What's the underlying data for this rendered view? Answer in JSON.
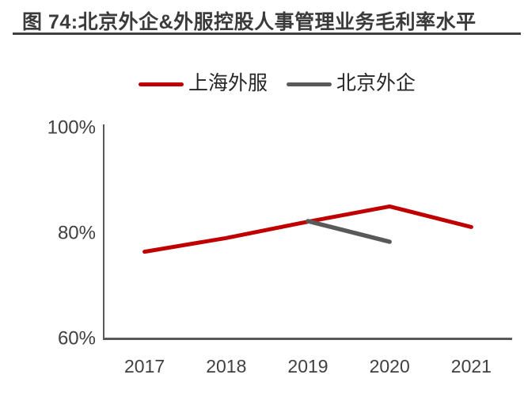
{
  "figure": {
    "title": "图 74:北京外企&外服控股人事管理业务毛利率水平"
  },
  "chart_data": {
    "type": "line",
    "title": "图 74:北京外企&外服控股人事管理业务毛利率水平",
    "categories": [
      "2017",
      "2018",
      "2019",
      "2020",
      "2021"
    ],
    "series": [
      {
        "name": "上海外服",
        "color": "#C00000",
        "values": [
          76.6,
          79.2,
          82.3,
          85.2,
          81.3
        ]
      },
      {
        "name": "北京外企",
        "color": "#595959",
        "values": [
          null,
          null,
          82.4,
          78.5,
          null
        ]
      }
    ],
    "ylabel": "",
    "xlabel": "",
    "ylim": [
      60,
      100
    ],
    "yticks": [
      {
        "value": 60,
        "label": "60%"
      },
      {
        "value": 80,
        "label": "80%"
      },
      {
        "value": 100,
        "label": "100%"
      }
    ],
    "grid": false,
    "legend_position": "top",
    "axis_color": "#595959"
  }
}
